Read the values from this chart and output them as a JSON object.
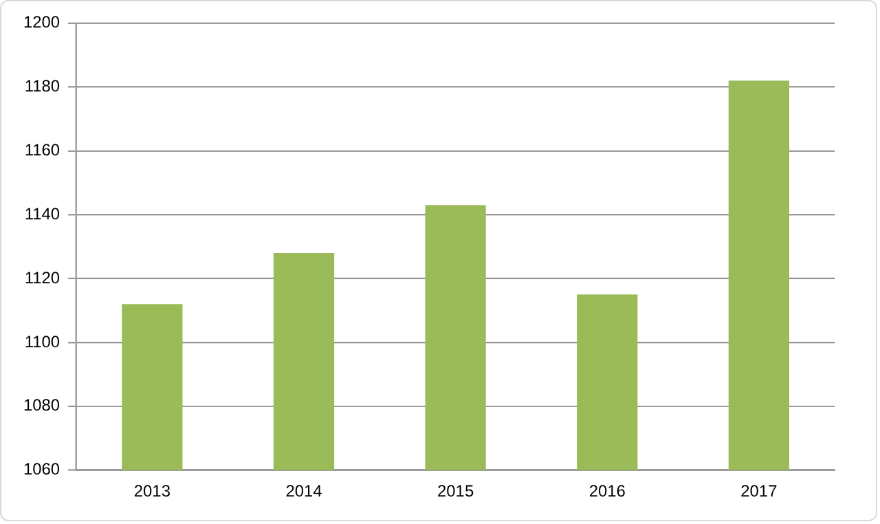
{
  "chart_data": {
    "type": "bar",
    "categories": [
      "2013",
      "2014",
      "2015",
      "2016",
      "2017"
    ],
    "values": [
      1112,
      1128,
      1143,
      1115,
      1182
    ],
    "color": "#9bbb59",
    "ylim": [
      1060,
      1200
    ],
    "yticks": [
      1060,
      1080,
      1100,
      1120,
      1140,
      1160,
      1180,
      1200
    ],
    "grid": "y",
    "legend": false
  }
}
